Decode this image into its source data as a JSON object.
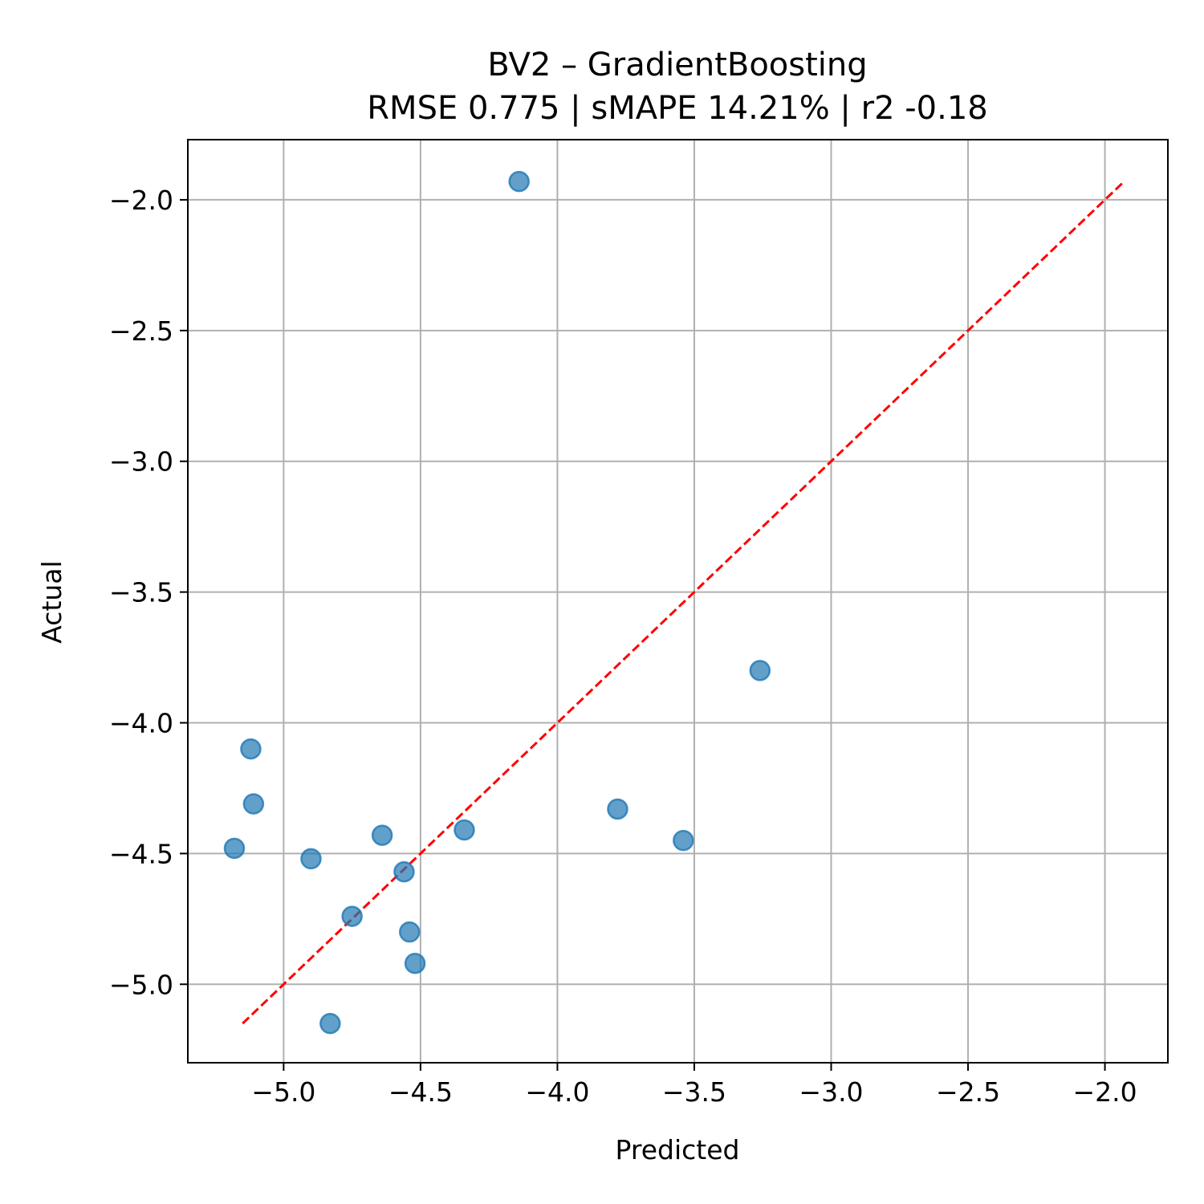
{
  "chart_data": {
    "type": "scatter",
    "title_line1": "BV2 – GradientBoosting",
    "title_line2": "RMSE 0.775 | sMAPE 14.21%  | r2 -0.18",
    "xlabel": "Predicted",
    "ylabel": "Actual",
    "xlim": [
      -5.35,
      -1.77
    ],
    "ylim": [
      -5.3,
      -1.77
    ],
    "x_ticks": [
      {
        "value": -5.0,
        "label": "−5.0"
      },
      {
        "value": -4.5,
        "label": "−4.5"
      },
      {
        "value": -4.0,
        "label": "−4.0"
      },
      {
        "value": -3.5,
        "label": "−3.5"
      },
      {
        "value": -3.0,
        "label": "−3.0"
      },
      {
        "value": -2.5,
        "label": "−2.5"
      },
      {
        "value": -2.0,
        "label": "−2.0"
      }
    ],
    "y_ticks": [
      {
        "value": -5.0,
        "label": "−5.0"
      },
      {
        "value": -4.5,
        "label": "−4.5"
      },
      {
        "value": -4.0,
        "label": "−4.0"
      },
      {
        "value": -3.5,
        "label": "−3.5"
      },
      {
        "value": -3.0,
        "label": "−3.0"
      },
      {
        "value": -2.5,
        "label": "−2.5"
      },
      {
        "value": -2.0,
        "label": "−2.0"
      }
    ],
    "grid": true,
    "point_color": "#1f77b4",
    "reference_line_color": "#ff0000",
    "points": [
      {
        "x": -4.14,
        "y": -1.93
      },
      {
        "x": -3.26,
        "y": -3.8
      },
      {
        "x": -5.12,
        "y": -4.1
      },
      {
        "x": -5.11,
        "y": -4.31
      },
      {
        "x": -3.78,
        "y": -4.33
      },
      {
        "x": -4.34,
        "y": -4.41
      },
      {
        "x": -4.64,
        "y": -4.43
      },
      {
        "x": -3.54,
        "y": -4.45
      },
      {
        "x": -5.18,
        "y": -4.48
      },
      {
        "x": -4.9,
        "y": -4.52
      },
      {
        "x": -4.56,
        "y": -4.57
      },
      {
        "x": -4.75,
        "y": -4.74
      },
      {
        "x": -4.54,
        "y": -4.8
      },
      {
        "x": -4.52,
        "y": -4.92
      },
      {
        "x": -4.83,
        "y": -5.15
      }
    ],
    "reference_line": {
      "x": [
        -5.15,
        -1.93
      ],
      "y": [
        -5.15,
        -1.93
      ]
    }
  }
}
